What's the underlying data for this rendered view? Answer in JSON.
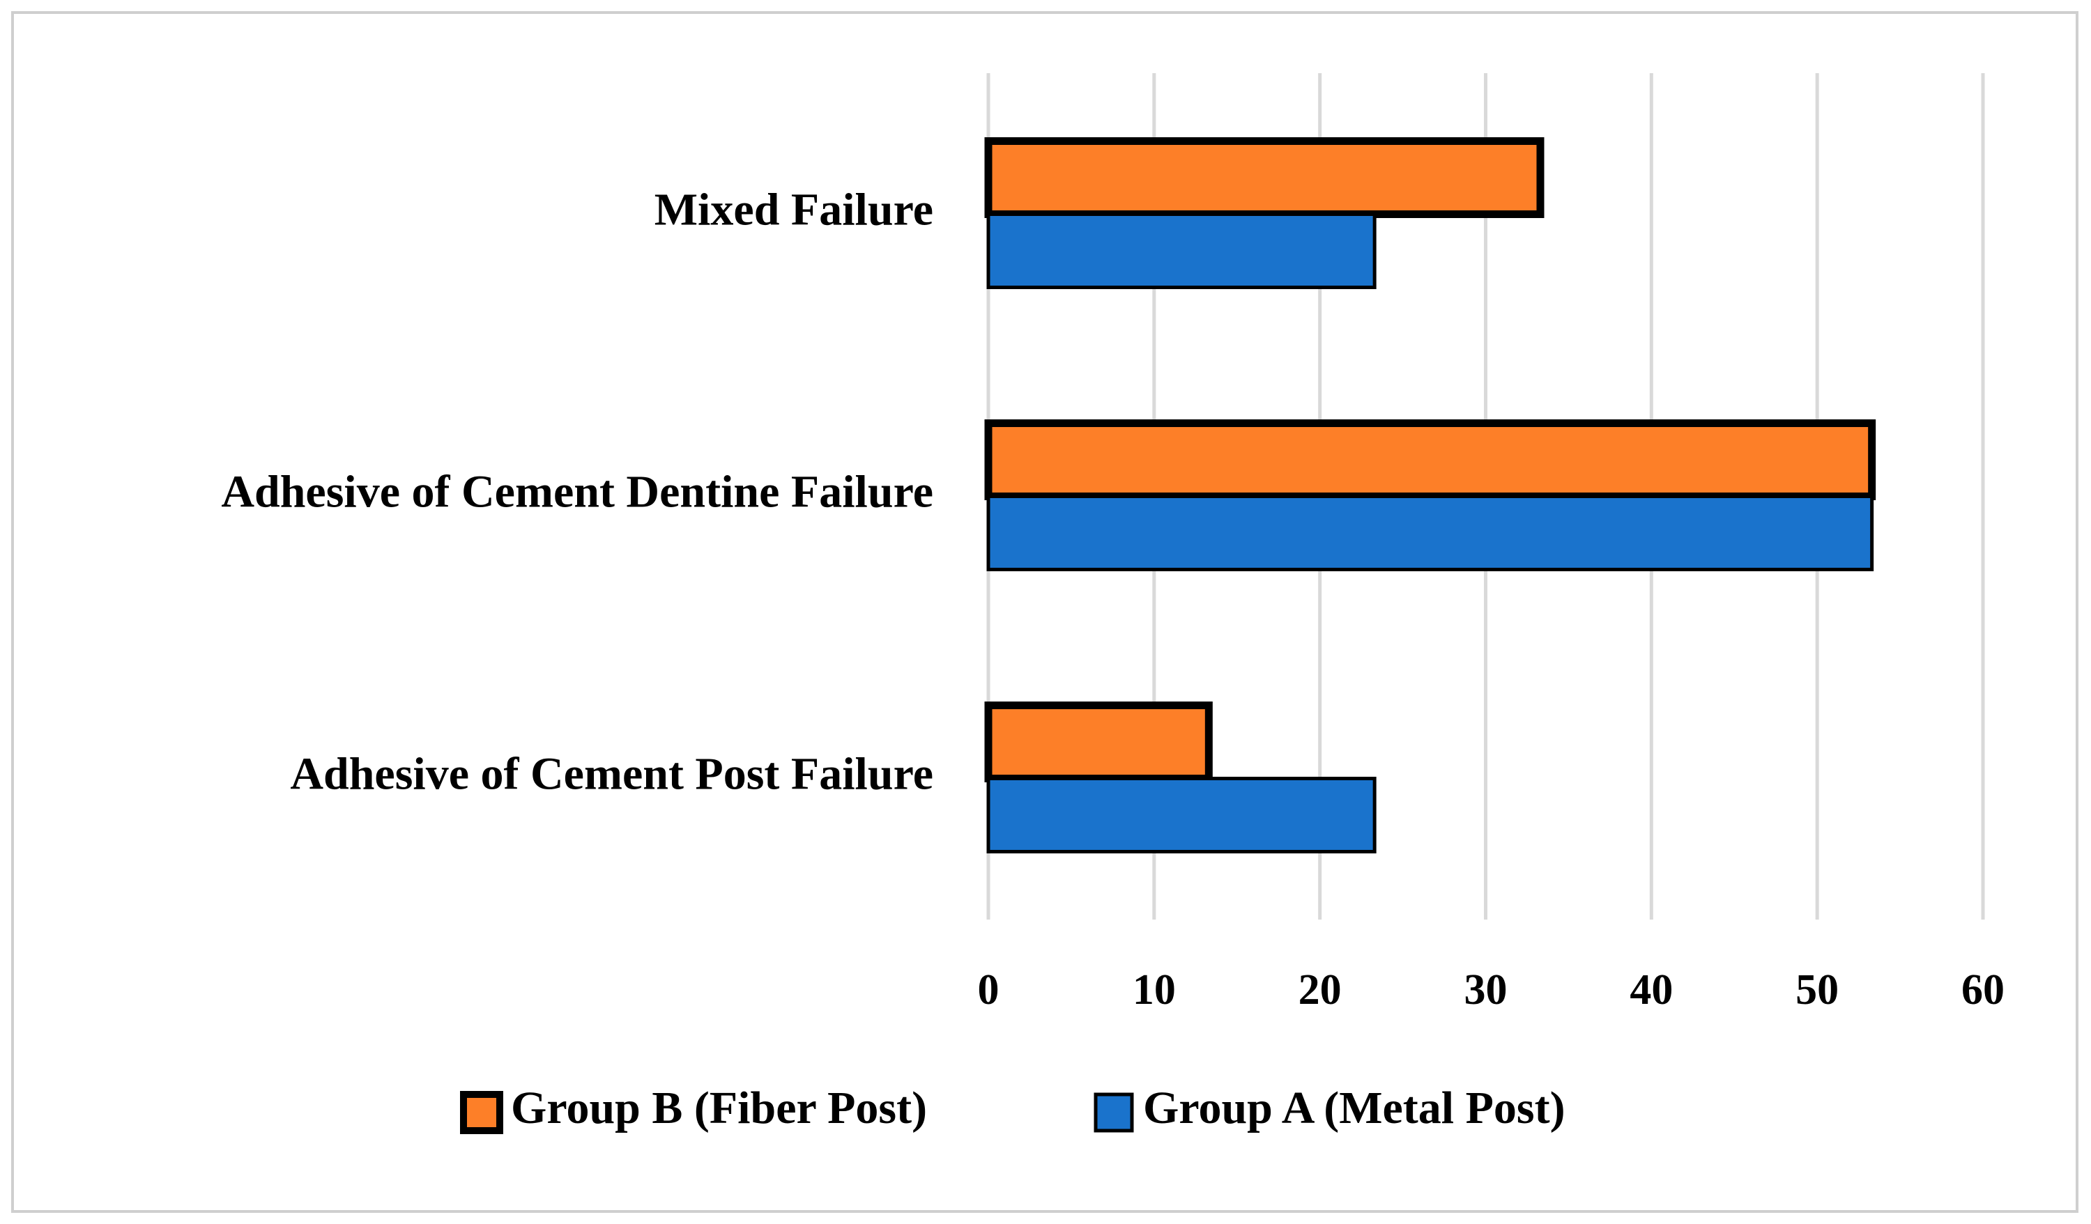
{
  "chart_data": {
    "type": "bar",
    "orientation": "horizontal",
    "categories": [
      "Mixed Failure",
      "Adhesive of Cement Dentine Failure",
      "Adhesive of Cement Post Failure"
    ],
    "series": [
      {
        "name": "Group B (Fiber Post)",
        "color": "#fd7f28",
        "values": [
          33.3,
          53.3,
          13.3
        ]
      },
      {
        "name": "Group A (Metal Post)",
        "color": "#1a73cc",
        "values": [
          23.3,
          53.3,
          23.3
        ]
      }
    ],
    "xlim": [
      0,
      60
    ],
    "xticks": [
      0,
      10,
      20,
      30,
      40,
      50,
      60
    ],
    "grid": true,
    "legend": "bottom"
  }
}
